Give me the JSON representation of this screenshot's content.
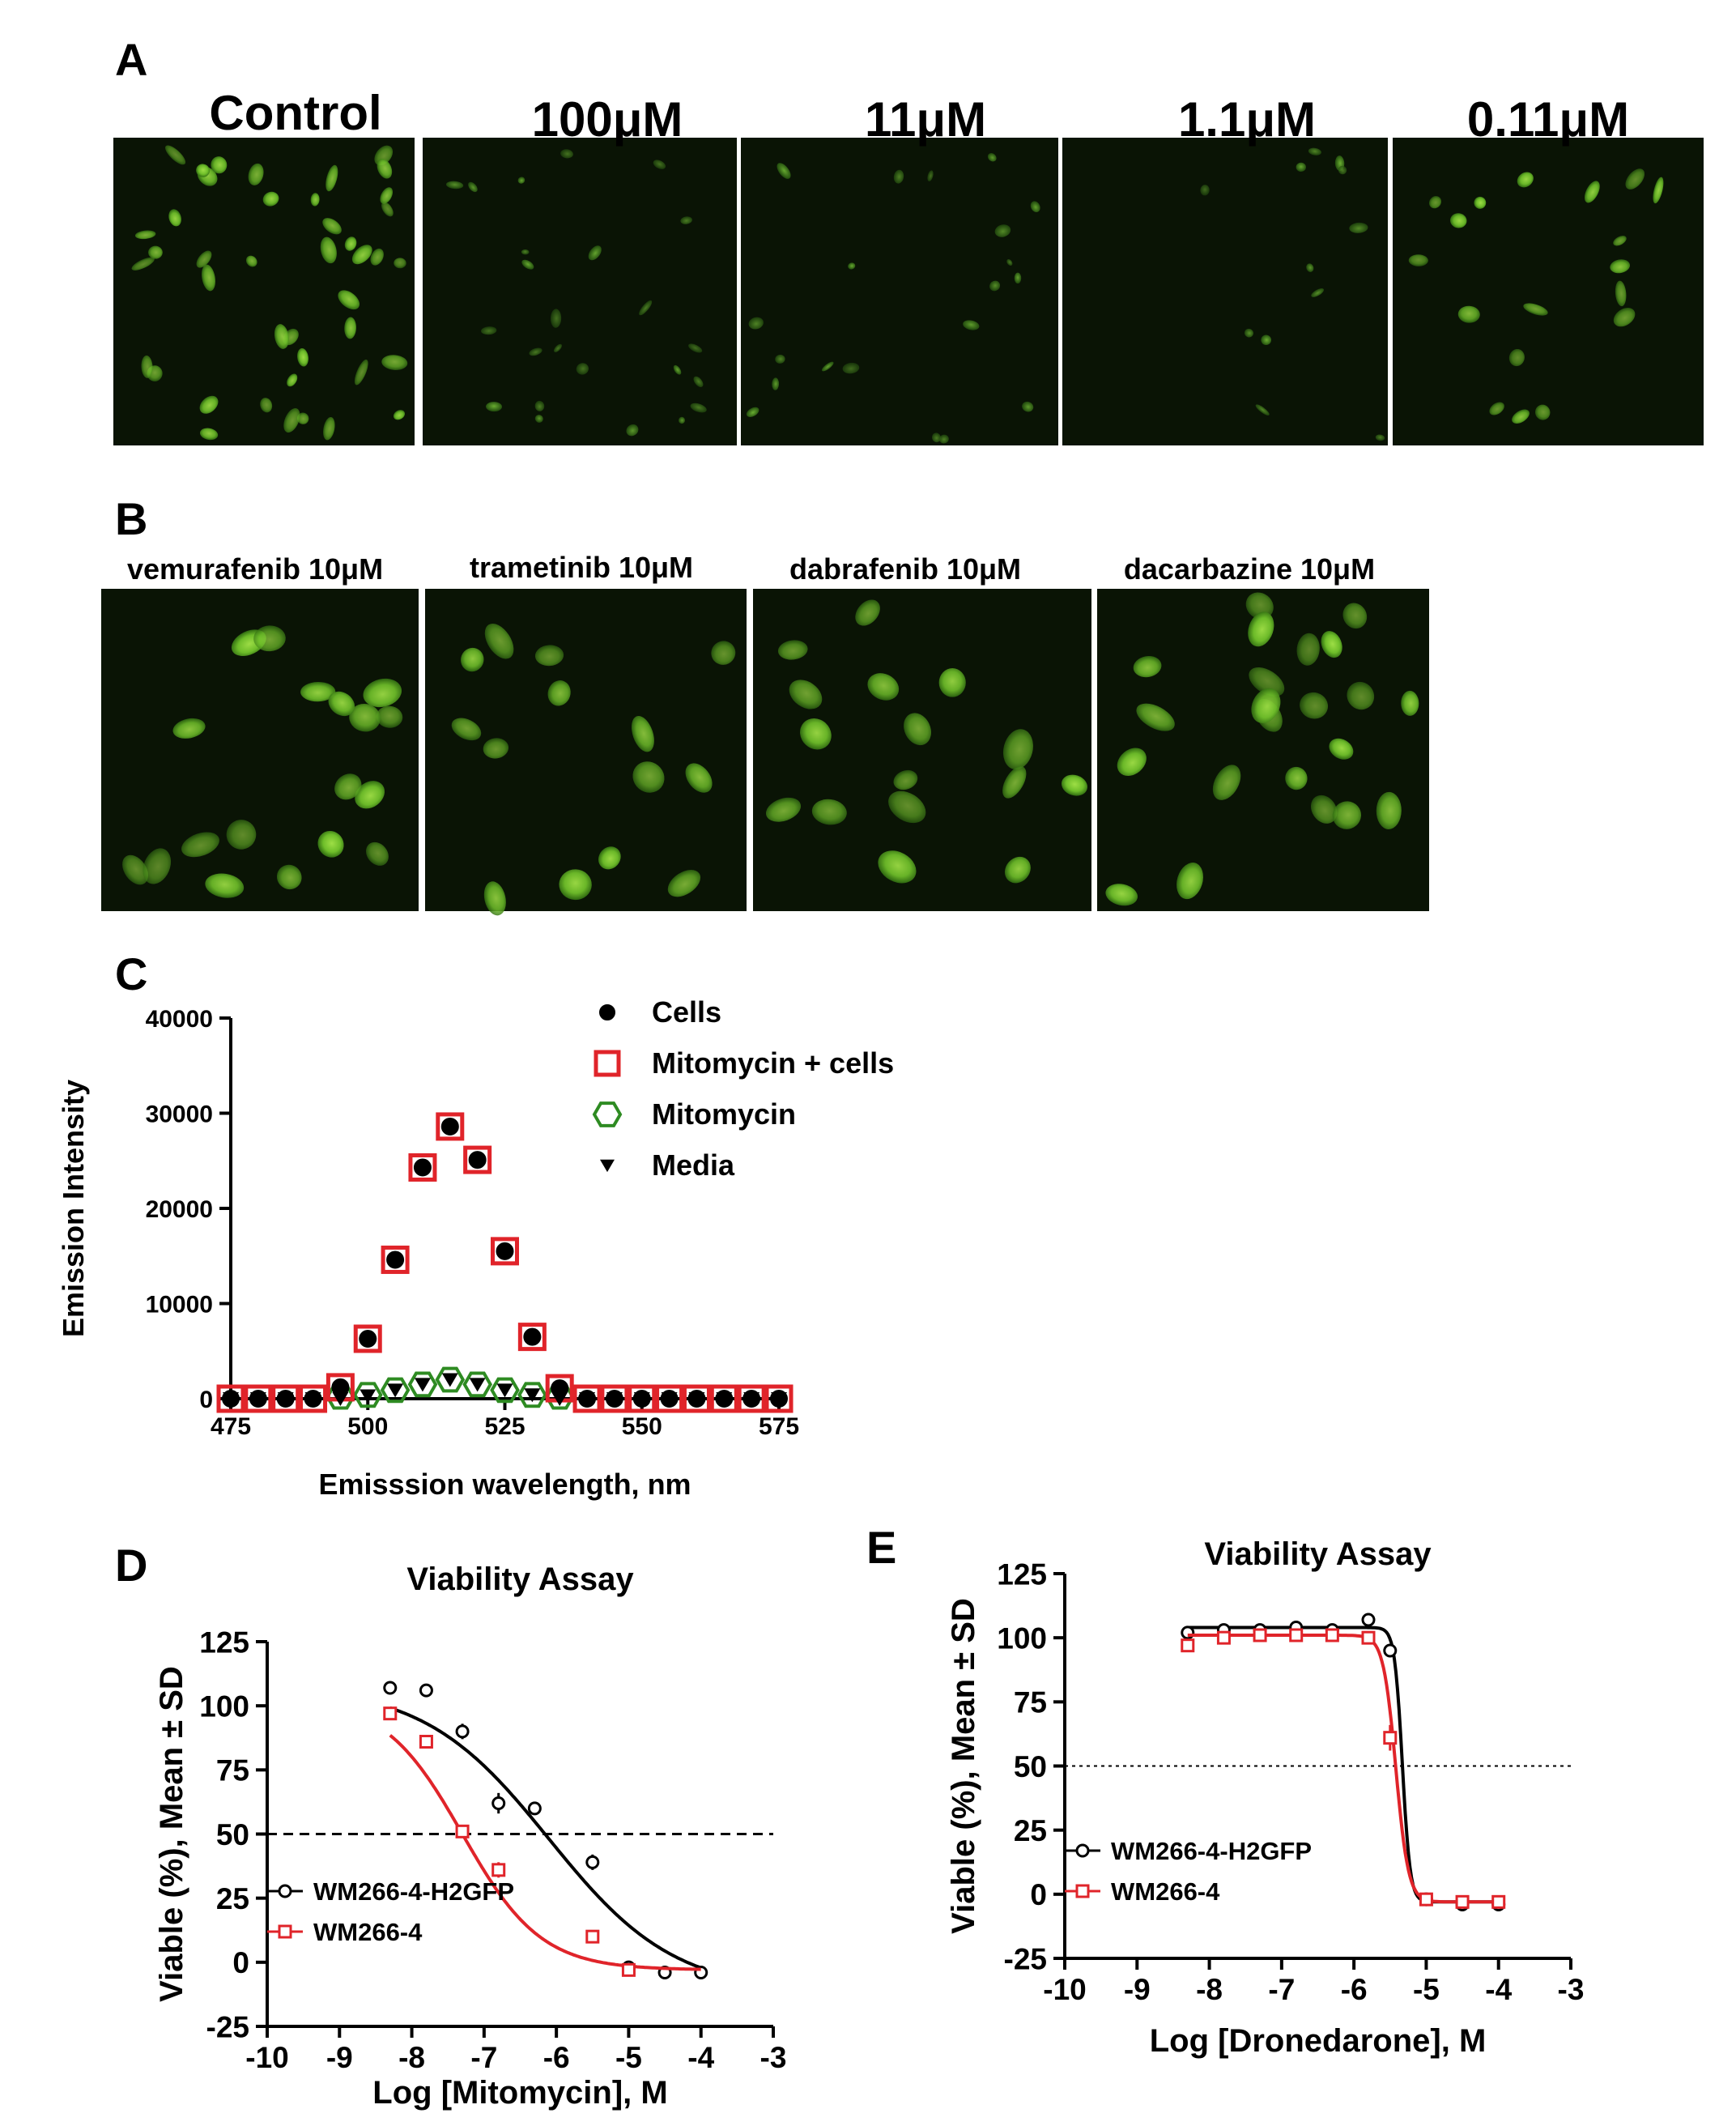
{
  "panels": {
    "a": {
      "label": "A",
      "tiles": [
        {
          "label": "Control"
        },
        {
          "label": "100μM"
        },
        {
          "label": "11μM"
        },
        {
          "label": "1.1μM"
        },
        {
          "label": "0.11μM"
        }
      ]
    },
    "b": {
      "label": "B",
      "tiles": [
        {
          "label": "vemurafenib 10μM"
        },
        {
          "label": "trametinib 10μM"
        },
        {
          "label": "dabrafenib 10μM"
        },
        {
          "label": "dacarbazine 10μM"
        }
      ]
    },
    "c": {
      "label": "C"
    },
    "d": {
      "label": "D"
    },
    "e": {
      "label": "E"
    }
  },
  "colors": {
    "red": "#e0242a",
    "green": "#2e8b22",
    "black": "#000000",
    "fluor": "#7ccd2e",
    "bg_micro": "#0a1405"
  },
  "chart_data": [
    {
      "id": "C",
      "type": "scatter",
      "xlabel": "Emisssion wavelength, nm",
      "ylabel": "Emission Intensity",
      "xlim": [
        475,
        575
      ],
      "ylim": [
        0,
        40000
      ],
      "xticks": [
        475,
        500,
        525,
        550,
        575
      ],
      "yticks": [
        0,
        10000,
        20000,
        30000,
        40000
      ],
      "legend_position": "top-right",
      "series": [
        {
          "name": "Cells",
          "marker": "circle",
          "color": "#000000",
          "x": [
            475,
            480,
            485,
            490,
            495,
            500,
            505,
            510,
            515,
            520,
            525,
            530,
            535,
            540,
            545,
            550,
            555,
            560,
            565,
            570,
            575
          ],
          "y": [
            0,
            0,
            0,
            0,
            1200,
            6300,
            14600,
            24300,
            28600,
            25100,
            15500,
            6500,
            1100,
            0,
            0,
            0,
            0,
            0,
            0,
            0,
            0
          ]
        },
        {
          "name": "Mitomycin + cells",
          "marker": "square",
          "color": "#e0242a",
          "x": [
            475,
            480,
            485,
            490,
            495,
            500,
            505,
            510,
            515,
            520,
            525,
            530,
            535,
            540,
            545,
            550,
            555,
            560,
            565,
            570,
            575
          ],
          "y": [
            0,
            0,
            0,
            0,
            1200,
            6300,
            14600,
            24300,
            28600,
            25100,
            15500,
            6500,
            1100,
            0,
            0,
            0,
            0,
            0,
            0,
            0,
            0
          ]
        },
        {
          "name": "Mitomycin",
          "marker": "hexagon",
          "color": "#2e8b22",
          "x": [
            495,
            500,
            505,
            510,
            515,
            520,
            525,
            530,
            535
          ],
          "y": [
            200,
            400,
            900,
            1500,
            2000,
            1500,
            900,
            400,
            200
          ]
        },
        {
          "name": "Media",
          "marker": "triangle-down",
          "color": "#000000",
          "x": [
            475,
            480,
            485,
            490,
            495,
            500,
            505,
            510,
            515,
            520,
            525,
            530,
            535,
            540,
            545,
            550,
            555,
            560,
            565,
            570,
            575
          ],
          "y": [
            0,
            0,
            0,
            0,
            0,
            300,
            900,
            1500,
            2000,
            1500,
            900,
            400,
            0,
            0,
            0,
            0,
            0,
            0,
            0,
            0,
            0
          ]
        }
      ]
    },
    {
      "id": "D",
      "type": "scatter",
      "title": "Viability Assay",
      "xlabel": "Log [Mitomycin], M",
      "ylabel": "Viable (%), Mean ± SD",
      "xlim": [
        -10,
        -3
      ],
      "ylim": [
        -25,
        125
      ],
      "xticks": [
        -10,
        -9,
        -8,
        -7,
        -6,
        -5,
        -4,
        -3
      ],
      "yticks": [
        -25,
        0,
        25,
        50,
        75,
        100,
        125
      ],
      "reference_line": 50,
      "legend_position": "bottom-left",
      "series": [
        {
          "name": "WM266-4-H2GFP",
          "marker": "circle",
          "color": "#000000",
          "x": [
            -8.3,
            -7.8,
            -7.3,
            -6.8,
            -6.3,
            -5.5,
            -5.0,
            -4.5,
            -4.0
          ],
          "y": [
            107,
            106,
            90,
            62,
            60,
            39,
            -2,
            -4,
            -4
          ],
          "err": [
            2,
            1,
            3,
            4,
            1,
            3,
            1,
            1,
            1
          ],
          "fit": {
            "top": 108,
            "bottom": -12,
            "logIC50": -6.1,
            "hill": 0.5,
            "x_range": [
              -8.3,
              -4.0
            ]
          }
        },
        {
          "name": "WM266-4",
          "marker": "square",
          "color": "#e0242a",
          "x": [
            -8.3,
            -7.8,
            -7.3,
            -6.8,
            -5.5,
            -5.0
          ],
          "y": [
            97,
            86,
            51,
            36,
            10,
            -3
          ],
          "err": [
            1,
            1,
            1,
            3,
            1,
            1
          ],
          "fit": {
            "top": 103,
            "bottom": -3,
            "logIC50": -7.3,
            "hill": 0.8,
            "x_range": [
              -8.3,
              -4.0
            ]
          }
        }
      ]
    },
    {
      "id": "E",
      "type": "scatter",
      "title": "Viability Assay",
      "xlabel": "Log [Dronedarone], M",
      "ylabel": "Viable (%), Mean ± SD",
      "xlim": [
        -10,
        -3
      ],
      "ylim": [
        -25,
        125
      ],
      "xticks": [
        -10,
        -9,
        -8,
        -7,
        -6,
        -5,
        -4,
        -3
      ],
      "yticks": [
        -25,
        0,
        25,
        50,
        75,
        100,
        125
      ],
      "reference_line": 50,
      "legend_position": "left",
      "series": [
        {
          "name": "WM266-4-H2GFP",
          "marker": "circle",
          "color": "#000000",
          "x": [
            -8.3,
            -7.8,
            -7.3,
            -6.8,
            -6.3,
            -5.8,
            -5.5,
            -5.0,
            -4.5,
            -4.0
          ],
          "y": [
            102,
            103,
            103,
            104,
            103,
            107,
            95,
            -2,
            -4,
            -4
          ],
          "err": [
            1,
            1,
            1,
            1,
            1,
            1,
            1,
            1,
            1,
            1
          ],
          "fit": {
            "top": 104,
            "bottom": -3,
            "logIC50": -5.33,
            "hill": 8,
            "x_range": [
              -8.3,
              -4.0
            ]
          }
        },
        {
          "name": "WM266-4",
          "marker": "square",
          "color": "#e0242a",
          "x": [
            -8.3,
            -7.8,
            -7.3,
            -6.8,
            -6.3,
            -5.8,
            -5.5,
            -5.0,
            -4.5,
            -4.0
          ],
          "y": [
            97,
            100,
            101,
            101,
            101,
            100,
            61,
            -2,
            -3,
            -3
          ],
          "err": [
            2,
            1,
            1,
            1,
            1,
            1,
            5,
            1,
            1,
            1
          ],
          "fit": {
            "top": 101,
            "bottom": -3,
            "logIC50": -5.42,
            "hill": 5,
            "x_range": [
              -8.3,
              -4.0
            ]
          }
        }
      ]
    }
  ]
}
